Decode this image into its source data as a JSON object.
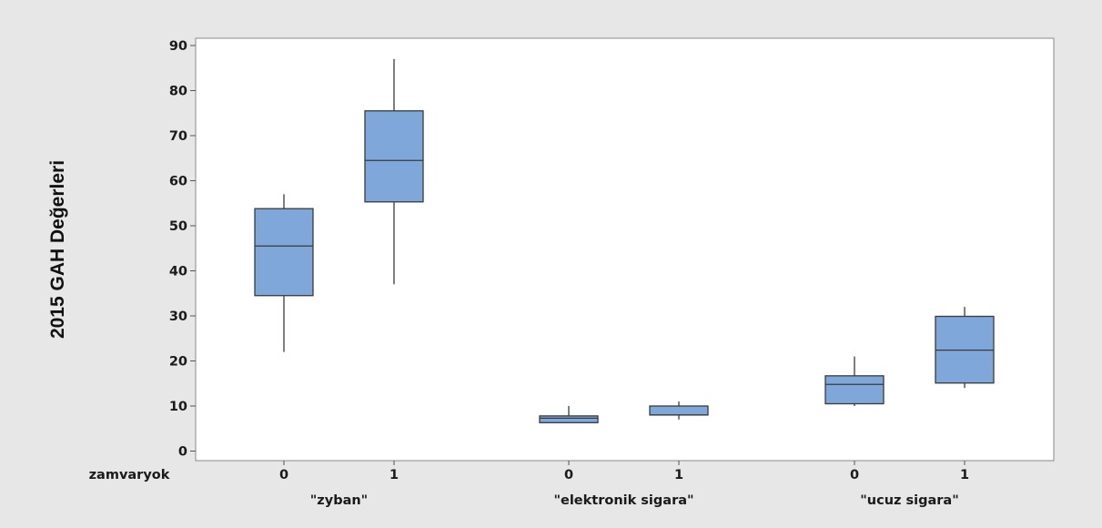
{
  "chart_data": {
    "type": "box",
    "ylabel": "2015 GAH Değerleri",
    "ylim": [
      0,
      90
    ],
    "yticks": [
      0,
      10,
      20,
      30,
      40,
      50,
      60,
      70,
      80,
      90
    ],
    "x_row_label": "zamvaryok",
    "groups": [
      {
        "name": "\"zyban\"",
        "boxes": [
          {
            "label": "0",
            "min": 22,
            "q1": 34.5,
            "median": 45.5,
            "q3": 53.8,
            "max": 57
          },
          {
            "label": "1",
            "min": 37,
            "q1": 55.3,
            "median": 64.5,
            "q3": 75.5,
            "max": 87
          }
        ]
      },
      {
        "name": "\"elektronik sigara\"",
        "boxes": [
          {
            "label": "0",
            "min": 6.3,
            "q1": 6.3,
            "median": 7.3,
            "q3": 7.8,
            "max": 10
          },
          {
            "label": "1",
            "min": 7,
            "q1": 8,
            "median": 8,
            "q3": 10,
            "max": 11
          }
        ]
      },
      {
        "name": "\"ucuz sigara\"",
        "boxes": [
          {
            "label": "0",
            "min": 10,
            "q1": 10.5,
            "median": 14.8,
            "q3": 16.7,
            "max": 21
          },
          {
            "label": "1",
            "min": 14,
            "q1": 15.1,
            "median": 22.4,
            "q3": 29.9,
            "max": 32
          }
        ]
      }
    ],
    "colors": {
      "box_fill": "#7fa7d9",
      "box_stroke": "#3a3a3a",
      "plot_bg": "#ffffff",
      "page_bg": "#e7e7e7",
      "frame": "#8a8a8a"
    },
    "grid": false
  }
}
